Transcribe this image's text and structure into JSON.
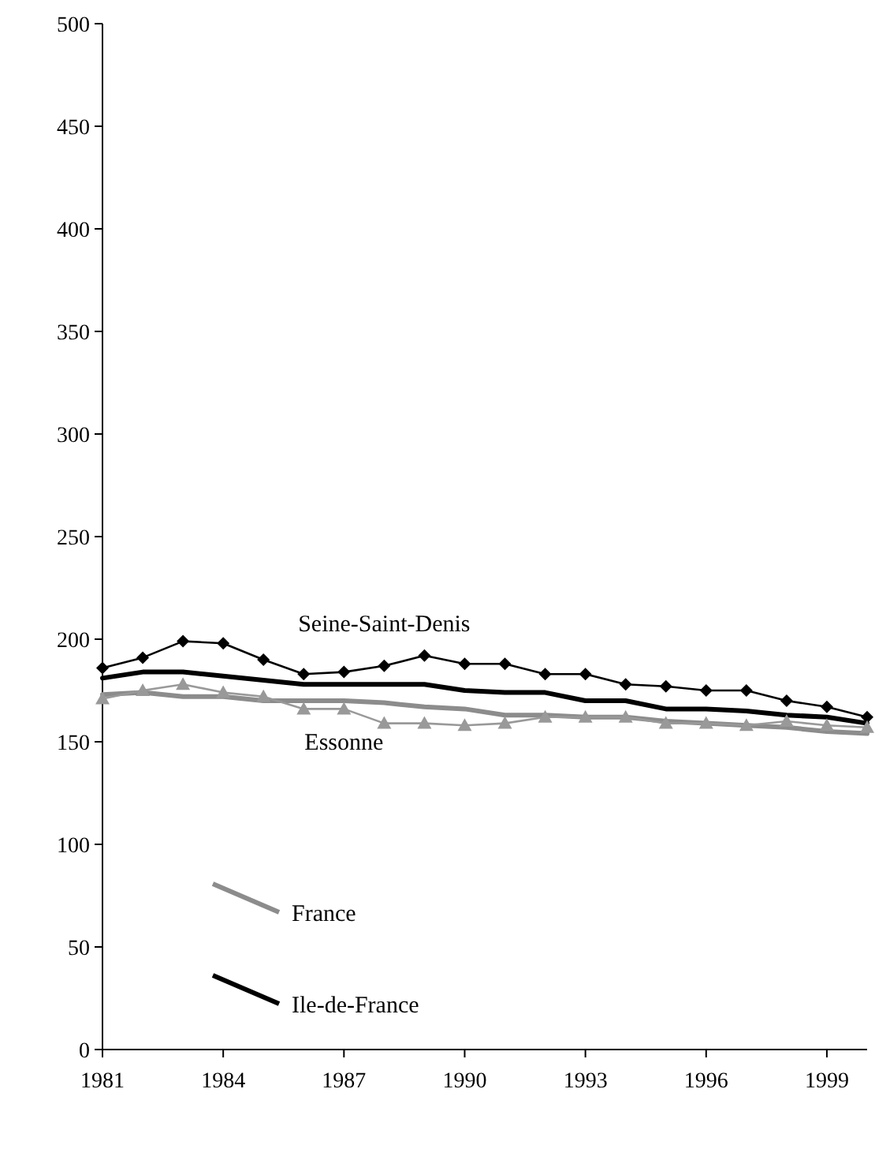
{
  "chart_data": {
    "type": "line",
    "x": [
      1981,
      1982,
      1983,
      1984,
      1985,
      1986,
      1987,
      1988,
      1989,
      1990,
      1991,
      1992,
      1993,
      1994,
      1995,
      1996,
      1997,
      1998,
      1999,
      2000
    ],
    "xlim": [
      1981,
      2000
    ],
    "xticks": [
      1981,
      1984,
      1987,
      1990,
      1993,
      1996,
      1999
    ],
    "ylim": [
      0,
      500
    ],
    "yticks": [
      0,
      50,
      100,
      150,
      200,
      250,
      300,
      350,
      400,
      450,
      500
    ],
    "grid": false,
    "legend": "bottom left",
    "series": [
      {
        "name": "Seine-Saint-Denis",
        "color": "#000000",
        "marker": "diamond",
        "values": [
          186,
          191,
          199,
          198,
          190,
          183,
          184,
          187,
          192,
          188,
          188,
          183,
          183,
          178,
          177,
          175,
          175,
          170,
          167,
          162
        ]
      },
      {
        "name": "Ile-de-France",
        "color": "#000000",
        "marker": "none",
        "values": [
          181,
          184,
          184,
          182,
          180,
          178,
          178,
          178,
          178,
          175,
          174,
          174,
          170,
          170,
          166,
          166,
          165,
          163,
          162,
          159
        ]
      },
      {
        "name": "France",
        "color": "#8c8c8c",
        "marker": "none",
        "values": [
          173,
          174,
          172,
          172,
          170,
          170,
          170,
          169,
          167,
          166,
          163,
          163,
          162,
          162,
          160,
          159,
          158,
          157,
          155,
          154
        ]
      },
      {
        "name": "Essonne",
        "color": "#999999",
        "marker": "triangle",
        "values": [
          171,
          175,
          178,
          174,
          172,
          166,
          166,
          159,
          159,
          158,
          159,
          162,
          162,
          162,
          159,
          159,
          158,
          160,
          158,
          157
        ]
      }
    ]
  }
}
